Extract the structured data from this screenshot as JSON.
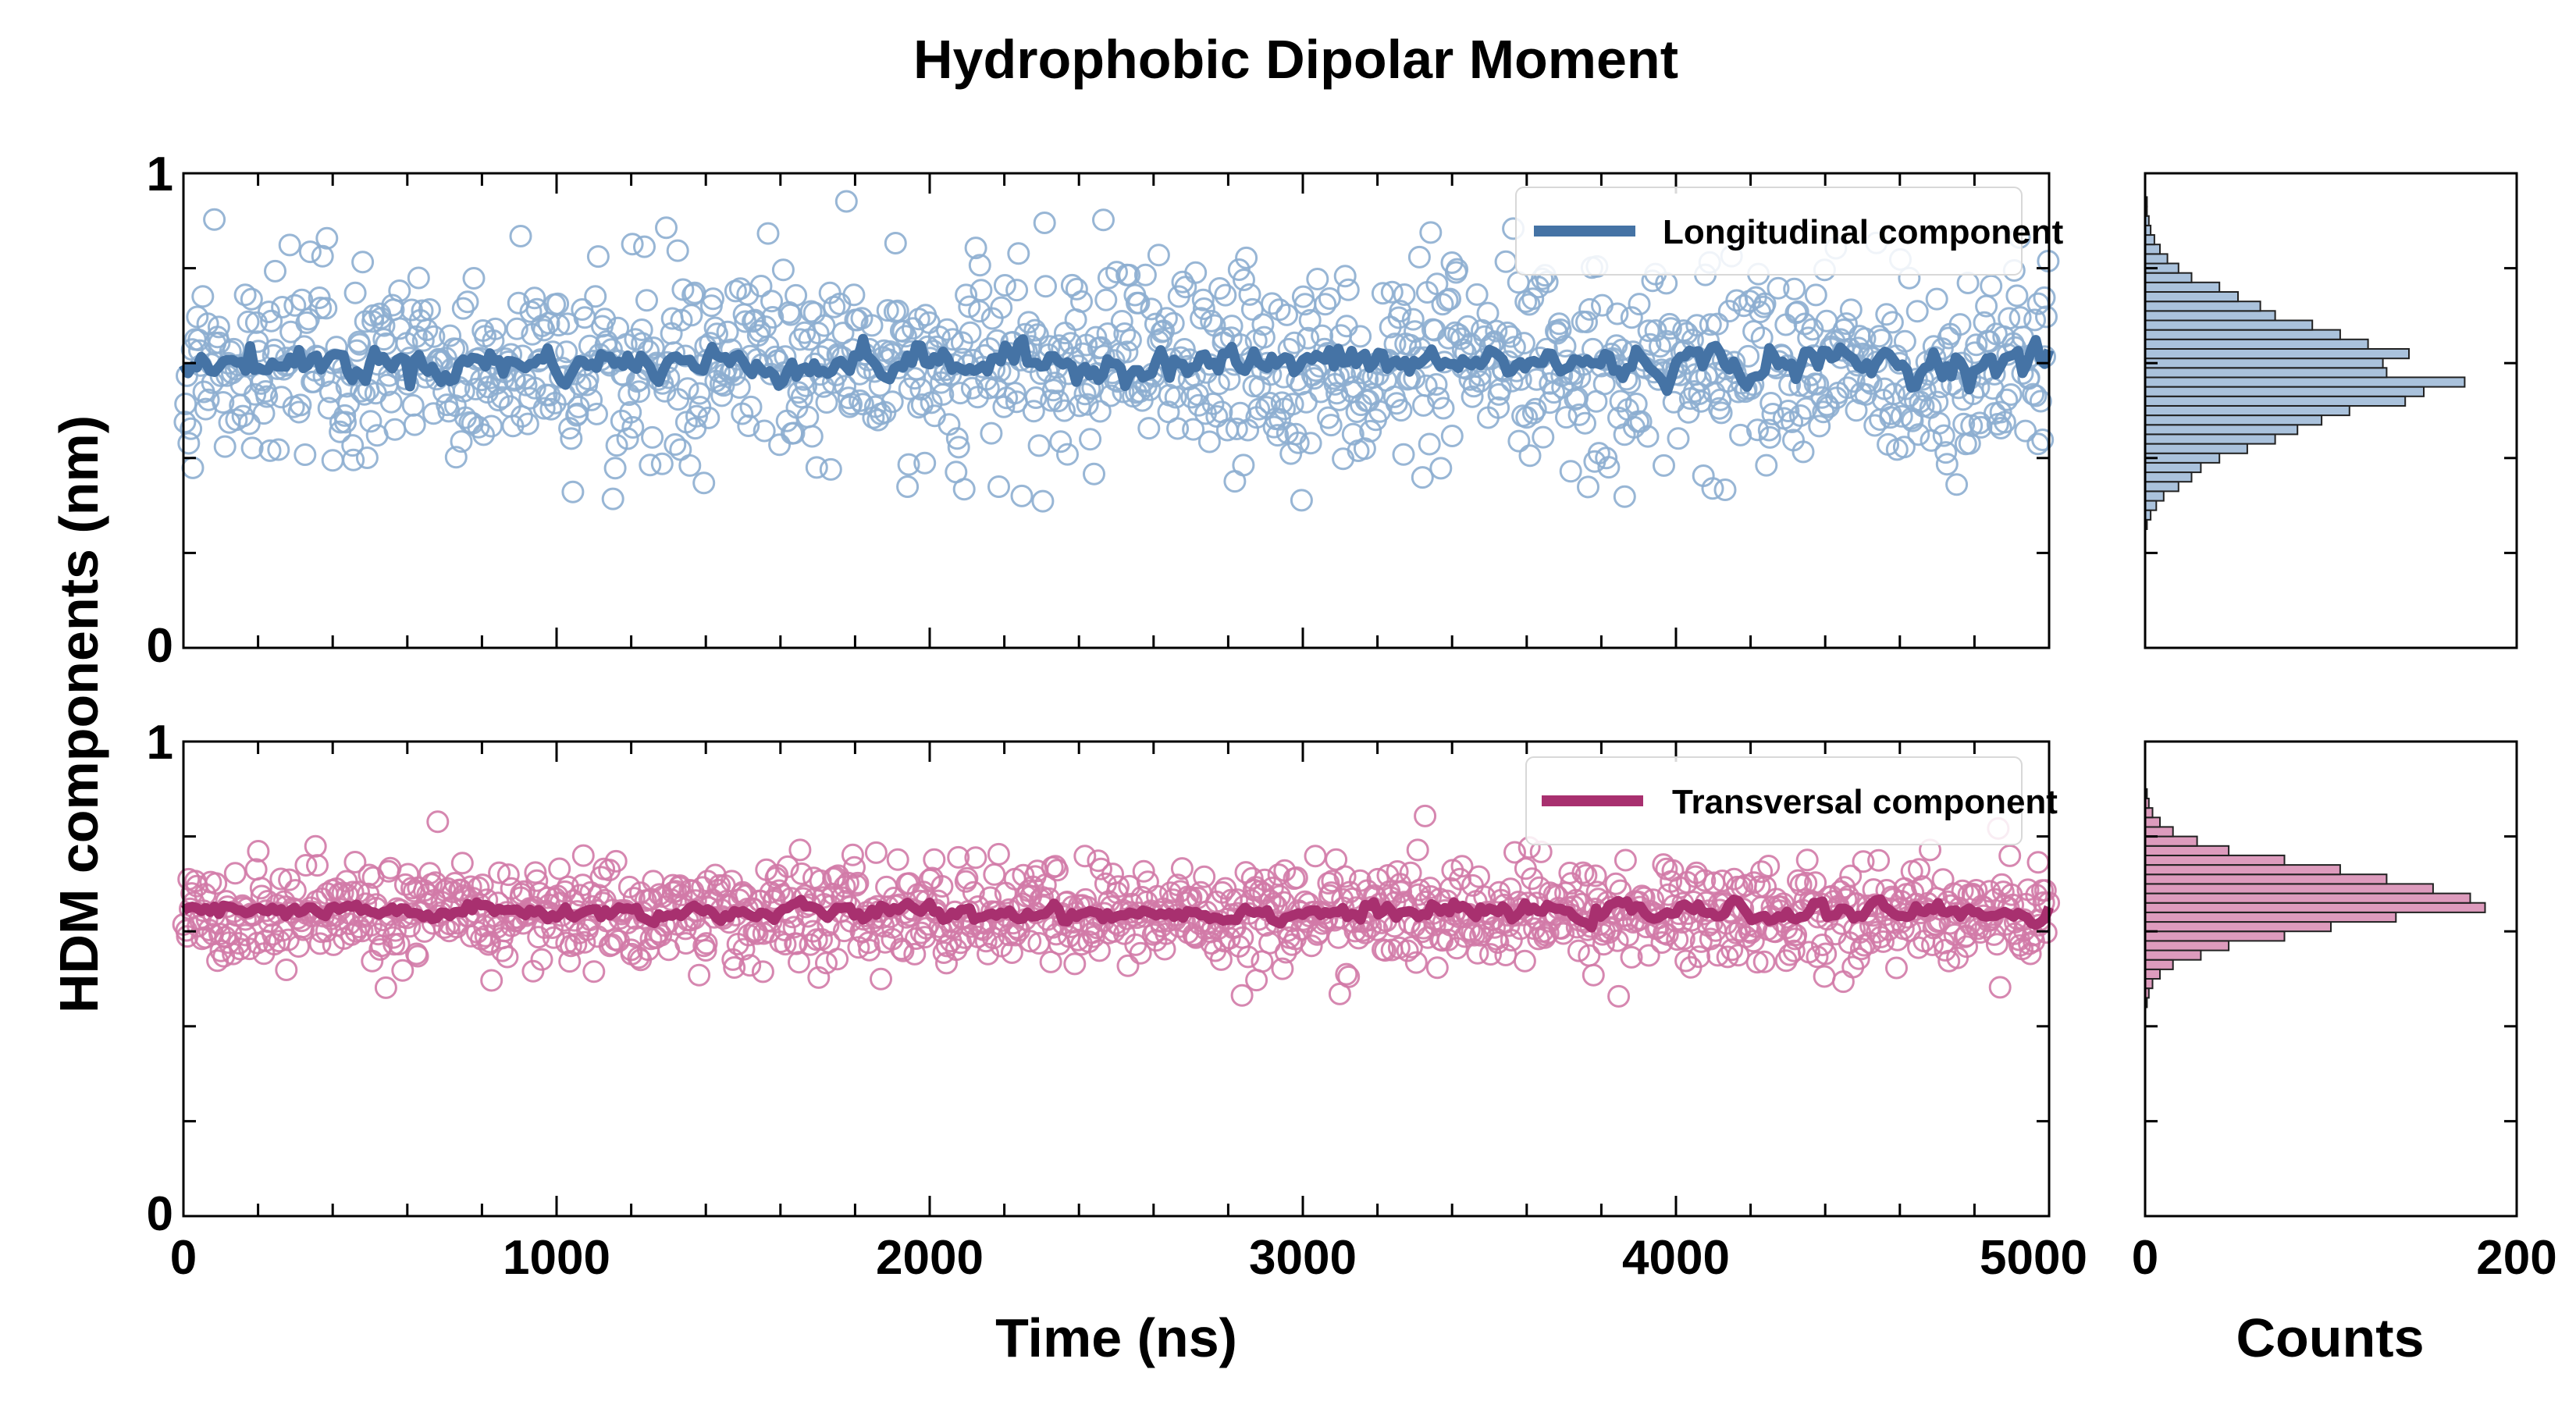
{
  "chart_data": {
    "type": "scatter",
    "title": "Hydrophobic Dipolar Moment",
    "ylabel": "HDM components (nm)",
    "xlabel": "Time (ns)",
    "hist_xlabel": "Counts",
    "xlim": [
      0,
      5000
    ],
    "ylim": [
      0,
      1
    ],
    "hist_xlim": [
      0,
      200
    ],
    "x_tick_labels": [
      "0",
      "1000",
      "2000",
      "3000",
      "4000",
      "5000"
    ],
    "y_tick_labels": [
      "0",
      "1"
    ],
    "hist_tick_labels": [
      "0",
      "200"
    ],
    "legend_position": "top-right",
    "panels": [
      {
        "series_name": "Longitudinal component",
        "color": "#4573a5",
        "marker_color": "#8daed0",
        "scatter_mean": 0.59,
        "scatter_spread": 0.105,
        "trend_mean": 0.6,
        "trend_amplitude": 0.035,
        "hist_bins": [
          {
            "y": 0.26,
            "count": 1
          },
          {
            "y": 0.28,
            "count": 3
          },
          {
            "y": 0.3,
            "count": 6
          },
          {
            "y": 0.32,
            "count": 10
          },
          {
            "y": 0.34,
            "count": 18
          },
          {
            "y": 0.36,
            "count": 25
          },
          {
            "y": 0.38,
            "count": 30
          },
          {
            "y": 0.4,
            "count": 40
          },
          {
            "y": 0.42,
            "count": 55
          },
          {
            "y": 0.44,
            "count": 70
          },
          {
            "y": 0.46,
            "count": 82
          },
          {
            "y": 0.48,
            "count": 95
          },
          {
            "y": 0.5,
            "count": 110
          },
          {
            "y": 0.52,
            "count": 140
          },
          {
            "y": 0.54,
            "count": 150
          },
          {
            "y": 0.56,
            "count": 172
          },
          {
            "y": 0.58,
            "count": 130
          },
          {
            "y": 0.6,
            "count": 128
          },
          {
            "y": 0.62,
            "count": 142
          },
          {
            "y": 0.64,
            "count": 120
          },
          {
            "y": 0.66,
            "count": 105
          },
          {
            "y": 0.68,
            "count": 90
          },
          {
            "y": 0.7,
            "count": 70
          },
          {
            "y": 0.72,
            "count": 62
          },
          {
            "y": 0.74,
            "count": 50
          },
          {
            "y": 0.76,
            "count": 40
          },
          {
            "y": 0.78,
            "count": 25
          },
          {
            "y": 0.8,
            "count": 18
          },
          {
            "y": 0.82,
            "count": 12
          },
          {
            "y": 0.84,
            "count": 8
          },
          {
            "y": 0.86,
            "count": 5
          },
          {
            "y": 0.88,
            "count": 3
          },
          {
            "y": 0.9,
            "count": 2
          },
          {
            "y": 0.92,
            "count": 1
          },
          {
            "y": 0.94,
            "count": 1
          }
        ]
      },
      {
        "series_name": "Transversal component",
        "color": "#a8306f",
        "marker_color": "#d27aa7",
        "scatter_mean": 0.635,
        "scatter_spread": 0.055,
        "trend_mean": 0.64,
        "trend_amplitude": 0.018,
        "hist_bins": [
          {
            "y": 0.45,
            "count": 1
          },
          {
            "y": 0.47,
            "count": 2
          },
          {
            "y": 0.49,
            "count": 4
          },
          {
            "y": 0.51,
            "count": 8
          },
          {
            "y": 0.53,
            "count": 15
          },
          {
            "y": 0.55,
            "count": 30
          },
          {
            "y": 0.57,
            "count": 45
          },
          {
            "y": 0.59,
            "count": 75
          },
          {
            "y": 0.61,
            "count": 100
          },
          {
            "y": 0.63,
            "count": 135
          },
          {
            "y": 0.65,
            "count": 183
          },
          {
            "y": 0.67,
            "count": 175
          },
          {
            "y": 0.69,
            "count": 155
          },
          {
            "y": 0.71,
            "count": 130
          },
          {
            "y": 0.73,
            "count": 105
          },
          {
            "y": 0.75,
            "count": 75
          },
          {
            "y": 0.77,
            "count": 45
          },
          {
            "y": 0.79,
            "count": 28
          },
          {
            "y": 0.81,
            "count": 15
          },
          {
            "y": 0.83,
            "count": 8
          },
          {
            "y": 0.85,
            "count": 4
          },
          {
            "y": 0.87,
            "count": 2
          },
          {
            "y": 0.89,
            "count": 1
          }
        ]
      }
    ]
  }
}
